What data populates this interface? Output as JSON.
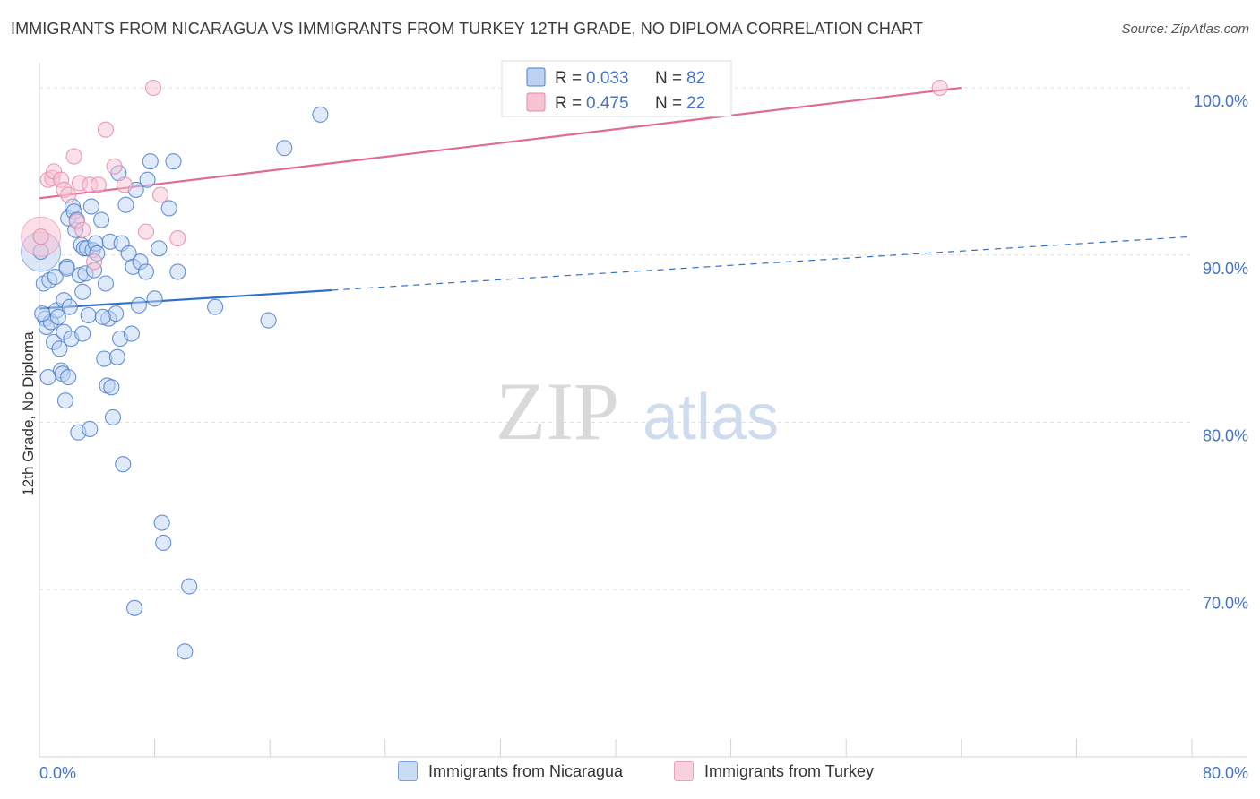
{
  "title": "IMMIGRANTS FROM NICARAGUA VS IMMIGRANTS FROM TURKEY 12TH GRADE, NO DIPLOMA CORRELATION CHART",
  "source": "Source: ZipAtlas.com",
  "watermark": {
    "zip": "ZIP",
    "atlas": "atlas"
  },
  "colors": {
    "blue": "#4a7fd0",
    "blue_fill": "#bdd3f3",
    "blue_line": "#2f6fcc",
    "pink": "#e88aa8",
    "pink_fill": "#f7c3d3",
    "pink_line": "#e06b95",
    "axis_label": "#4472c4",
    "grid": "#dde1e6"
  },
  "chart_data": {
    "type": "scatter",
    "title": "IMMIGRANTS FROM NICARAGUA VS IMMIGRANTS FROM TURKEY 12TH GRADE, NO DIPLOMA CORRELATION CHART",
    "xlabel": "",
    "ylabel": "12th Grade, No Diploma",
    "xlim": [
      0,
      80
    ],
    "ylim": [
      60,
      101.5
    ],
    "x_tick_labels": [
      "0.0%",
      "80.0%"
    ],
    "y_ticks": [
      70,
      80,
      90,
      100
    ],
    "y_tick_labels": [
      "70.0%",
      "80.0%",
      "90.0%",
      "100.0%"
    ],
    "legend": [
      {
        "label": "R = ",
        "r": "0.033",
        "n_label": "N = ",
        "n": "82"
      },
      {
        "label": "R = ",
        "r": "0.475",
        "n_label": "N = ",
        "n": "22"
      }
    ],
    "series": [
      {
        "name": "Immigrants from Nicaragua",
        "color": "blue",
        "trend": {
          "x0": 0,
          "y0": 86.8,
          "x1": 20.3,
          "y1": 87.9,
          "x_dash_end": 80,
          "y_dash_end": 91.1
        },
        "points": [
          [
            0.1,
            90.2
          ],
          [
            0.3,
            88.3
          ],
          [
            0.4,
            86.2
          ],
          [
            0.5,
            85.7
          ],
          [
            0.6,
            82.7
          ],
          [
            0.7,
            88.5
          ],
          [
            0.8,
            86.0
          ],
          [
            1.0,
            84.8
          ],
          [
            1.1,
            88.7
          ],
          [
            1.2,
            86.7
          ],
          [
            1.3,
            86.3
          ],
          [
            1.4,
            84.4
          ],
          [
            1.5,
            83.1
          ],
          [
            1.6,
            82.9
          ],
          [
            1.7,
            87.3
          ],
          [
            1.7,
            85.4
          ],
          [
            1.8,
            81.3
          ],
          [
            1.9,
            89.3
          ],
          [
            2.0,
            92.2
          ],
          [
            2.0,
            82.7
          ],
          [
            2.1,
            86.9
          ],
          [
            2.2,
            85.0
          ],
          [
            2.3,
            92.9
          ],
          [
            2.4,
            92.6
          ],
          [
            2.5,
            91.5
          ],
          [
            2.6,
            92.1
          ],
          [
            2.7,
            79.4
          ],
          [
            2.8,
            88.8
          ],
          [
            2.9,
            90.6
          ],
          [
            3.0,
            87.8
          ],
          [
            3.1,
            90.4
          ],
          [
            3.2,
            88.9
          ],
          [
            3.3,
            90.4
          ],
          [
            3.4,
            86.4
          ],
          [
            3.5,
            79.6
          ],
          [
            3.6,
            92.9
          ],
          [
            3.7,
            90.3
          ],
          [
            3.8,
            89.1
          ],
          [
            3.9,
            90.7
          ],
          [
            4.0,
            90.1
          ],
          [
            4.3,
            92.1
          ],
          [
            4.5,
            83.8
          ],
          [
            4.6,
            88.3
          ],
          [
            4.7,
            82.2
          ],
          [
            4.8,
            86.2
          ],
          [
            4.9,
            90.8
          ],
          [
            5.0,
            82.1
          ],
          [
            5.1,
            80.3
          ],
          [
            5.3,
            86.5
          ],
          [
            5.4,
            83.9
          ],
          [
            5.5,
            94.9
          ],
          [
            5.6,
            85.0
          ],
          [
            5.7,
            90.7
          ],
          [
            5.8,
            77.5
          ],
          [
            6.0,
            93.0
          ],
          [
            6.2,
            90.1
          ],
          [
            6.4,
            85.3
          ],
          [
            6.5,
            89.3
          ],
          [
            6.6,
            68.9
          ],
          [
            6.7,
            93.9
          ],
          [
            6.9,
            87.0
          ],
          [
            7.0,
            89.6
          ],
          [
            7.4,
            89.0
          ],
          [
            7.5,
            94.5
          ],
          [
            7.7,
            95.6
          ],
          [
            8.0,
            87.4
          ],
          [
            8.3,
            90.4
          ],
          [
            8.5,
            74.0
          ],
          [
            8.6,
            72.8
          ],
          [
            9.0,
            92.8
          ],
          [
            9.3,
            95.6
          ],
          [
            9.6,
            89.0
          ],
          [
            10.1,
            66.3
          ],
          [
            10.4,
            70.2
          ],
          [
            12.2,
            86.9
          ],
          [
            15.9,
            86.1
          ],
          [
            17.0,
            96.4
          ],
          [
            19.5,
            98.4
          ],
          [
            0.2,
            86.5
          ],
          [
            1.9,
            89.2
          ],
          [
            3.0,
            85.3
          ],
          [
            4.4,
            86.3
          ]
        ],
        "large_point": [
          0.1,
          90.2
        ]
      },
      {
        "name": "Immigrants from Turkey",
        "color": "pink",
        "trend": {
          "x0": 0,
          "y0": 93.4,
          "x1": 64.0,
          "y1": 100.0
        },
        "points": [
          [
            0.1,
            91.1
          ],
          [
            0.6,
            94.5
          ],
          [
            0.9,
            94.6
          ],
          [
            1.0,
            95.0
          ],
          [
            1.5,
            94.5
          ],
          [
            1.7,
            93.9
          ],
          [
            2.0,
            93.6
          ],
          [
            2.4,
            95.9
          ],
          [
            2.6,
            92.0
          ],
          [
            2.8,
            94.3
          ],
          [
            3.0,
            91.5
          ],
          [
            3.5,
            94.2
          ],
          [
            3.8,
            89.6
          ],
          [
            4.1,
            94.2
          ],
          [
            4.6,
            97.5
          ],
          [
            5.2,
            95.3
          ],
          [
            5.9,
            94.2
          ],
          [
            7.4,
            91.4
          ],
          [
            8.4,
            93.6
          ],
          [
            9.6,
            91.0
          ],
          [
            7.9,
            100.0
          ],
          [
            62.5,
            100.0
          ]
        ],
        "large_point": [
          0.1,
          91.1
        ]
      }
    ]
  }
}
